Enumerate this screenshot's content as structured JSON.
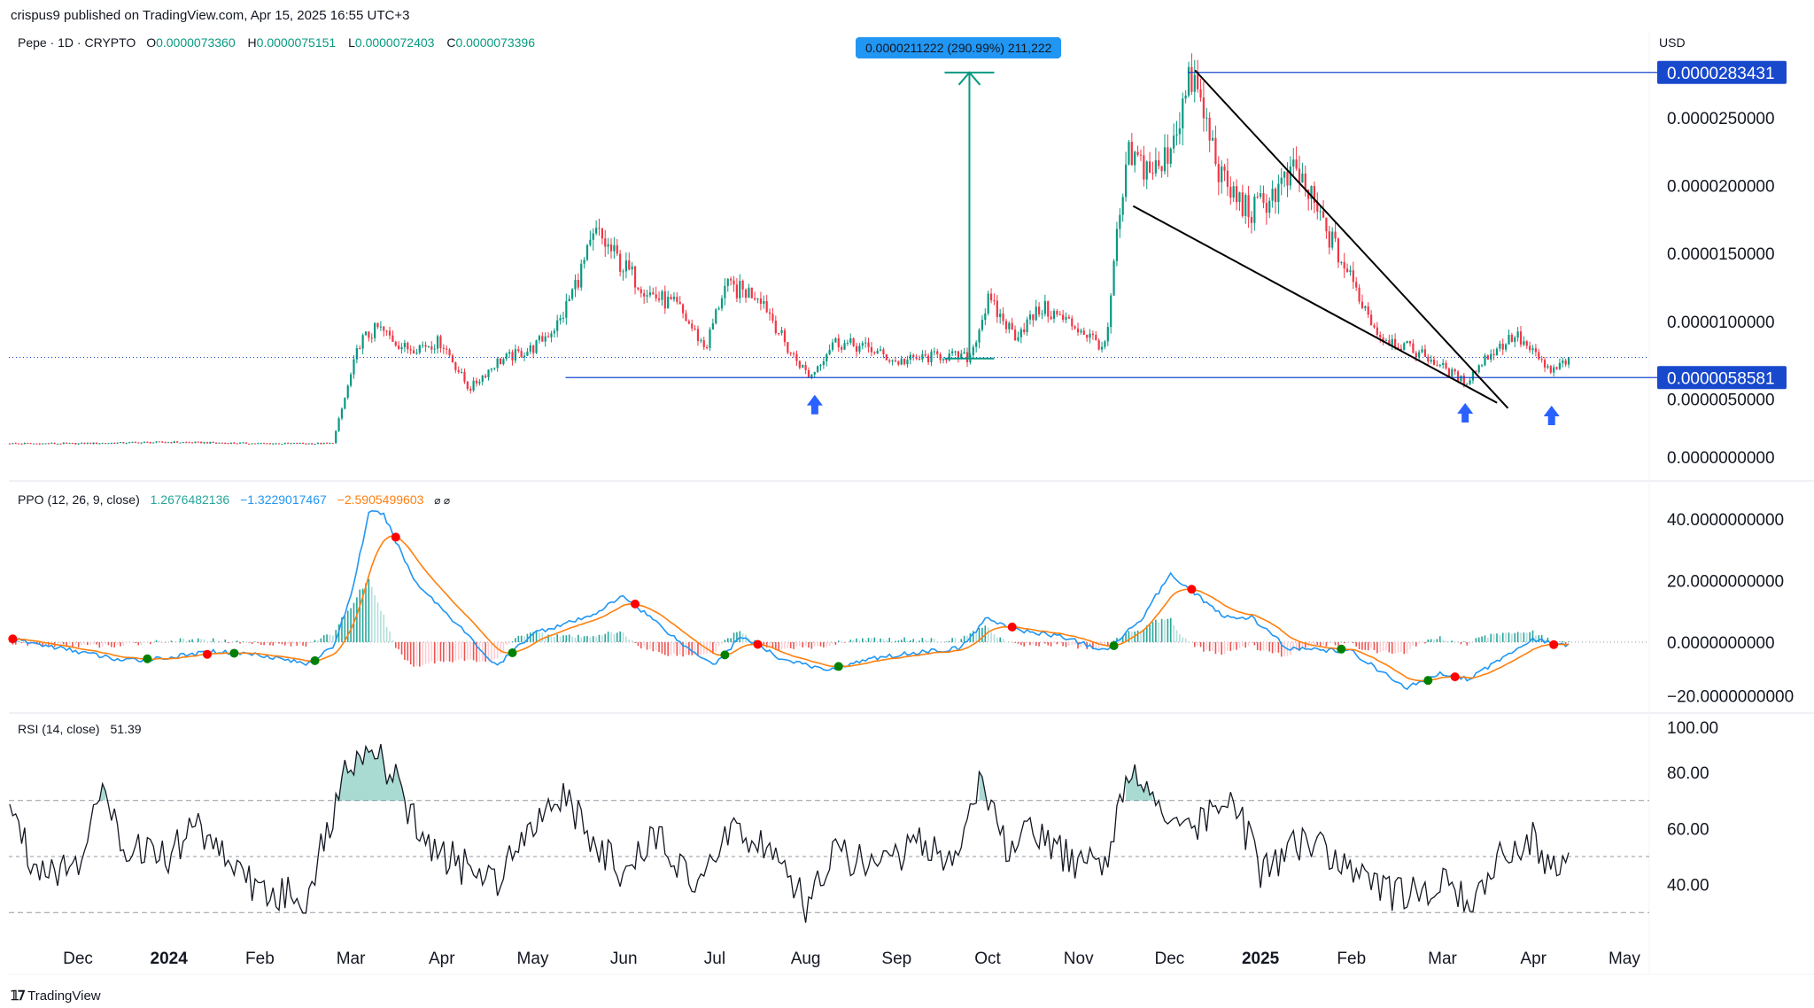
{
  "header": {
    "published": "crispus9 published on TradingView.com, Apr 15, 2025 16:55 UTC+3"
  },
  "symbol": {
    "name": "Pepe · 1D · CRYPTO",
    "o_label": "O",
    "o": "0.0000073360",
    "h_label": "H",
    "h": "0.0000075151",
    "l_label": "L",
    "l": "0.0000072403",
    "c_label": "C",
    "c": "0.0000073396"
  },
  "price_axis": {
    "currency": "USD",
    "ticks": [
      "0.0000250000",
      "0.0000200000",
      "0.0000150000",
      "0.0000100000",
      "0.0000050000",
      "0.0000000000"
    ],
    "resistance_label": "0.0000283431",
    "support_label": "0.0000058581"
  },
  "measure": {
    "label": "0.0000211222 (290.99%) 211,222"
  },
  "ppo": {
    "title": "PPO (12, 26, 9, close)",
    "hist": "1.2676482136",
    "ppo": "−1.3229017467",
    "signal": "−2.5905499603",
    "ticks": [
      "40.0000000000",
      "20.0000000000",
      "0.0000000000",
      "−20.0000000000"
    ]
  },
  "rsi": {
    "title": "RSI (14, close)",
    "value": "51.39",
    "ticks": [
      "100.00",
      "80.00",
      "60.00",
      "40.00"
    ]
  },
  "time_axis": {
    "labels": [
      "Dec",
      "2024",
      "Feb",
      "Mar",
      "Apr",
      "May",
      "Jun",
      "Jul",
      "Aug",
      "Sep",
      "Oct",
      "Nov",
      "Dec",
      "2025",
      "Feb",
      "Mar",
      "Apr",
      "May"
    ]
  },
  "footer": {
    "brand": "TradingView"
  },
  "colors": {
    "up": "#089981",
    "down": "#f23645",
    "ppo": "#2196f3",
    "signal": "#ff7f0e",
    "level": "#1848cc",
    "measure": "#2196f3"
  },
  "chart_data": {
    "type": "candlestick",
    "price_unit": "1e-6 USD",
    "price_key_points": [
      [
        -0.75,
        1.0
      ],
      [
        0,
        1.0
      ],
      [
        1,
        1.1
      ],
      [
        2,
        1.0
      ],
      [
        2.8,
        1.0
      ],
      [
        3.1,
        8.5
      ],
      [
        3.3,
        9.5
      ],
      [
        3.6,
        8
      ],
      [
        4,
        8.5
      ],
      [
        4.3,
        5.0
      ],
      [
        4.6,
        7
      ],
      [
        5,
        8
      ],
      [
        5.3,
        10
      ],
      [
        5.7,
        16.5
      ],
      [
        6,
        14
      ],
      [
        6.3,
        12
      ],
      [
        6.6,
        11
      ],
      [
        6.9,
        8
      ],
      [
        7.1,
        12.5
      ],
      [
        7.5,
        12
      ],
      [
        7.8,
        8
      ],
      [
        8.05,
        5.9
      ],
      [
        8.3,
        8.5
      ],
      [
        8.7,
        8
      ],
      [
        9,
        7
      ],
      [
        9.5,
        7.5
      ],
      [
        9.8,
        7.3
      ],
      [
        10.0,
        11.5
      ],
      [
        10.3,
        9
      ],
      [
        10.6,
        11
      ],
      [
        11,
        9.5
      ],
      [
        11.3,
        8
      ],
      [
        11.42,
        16
      ],
      [
        11.55,
        22
      ],
      [
        11.9,
        21
      ],
      [
        12.25,
        28
      ],
      [
        12.6,
        20
      ],
      [
        12.9,
        18
      ],
      [
        13.4,
        21
      ],
      [
        13.7,
        17
      ],
      [
        14,
        13
      ],
      [
        14.3,
        9
      ],
      [
        14.8,
        7.5
      ],
      [
        15.25,
        5.5
      ],
      [
        15.5,
        7.5
      ],
      [
        15.8,
        9
      ],
      [
        16.2,
        6.2
      ],
      [
        16.4,
        7.34
      ]
    ],
    "resistance": 28.3431,
    "support": 5.8581,
    "last": 7.3396,
    "ppo_key_points": [
      [
        -0.75,
        1
      ],
      [
        0,
        -3
      ],
      [
        0.5,
        -6
      ],
      [
        1,
        -5
      ],
      [
        1.5,
        -3
      ],
      [
        2,
        -4
      ],
      [
        2.5,
        -7
      ],
      [
        2.8,
        -2
      ],
      [
        3.0,
        15
      ],
      [
        3.2,
        42
      ],
      [
        3.35,
        42
      ],
      [
        3.7,
        20
      ],
      [
        4.2,
        5
      ],
      [
        4.6,
        -8
      ],
      [
        5,
        3
      ],
      [
        5.6,
        8
      ],
      [
        6,
        15
      ],
      [
        6.3,
        8
      ],
      [
        6.7,
        -2
      ],
      [
        7,
        -7
      ],
      [
        7.3,
        2
      ],
      [
        7.7,
        -5
      ],
      [
        8.2,
        -9
      ],
      [
        8.8,
        -5
      ],
      [
        9.3,
        -3
      ],
      [
        9.7,
        -2
      ],
      [
        10,
        8
      ],
      [
        10.3,
        4
      ],
      [
        10.8,
        2
      ],
      [
        11.1,
        -1
      ],
      [
        11.3,
        -3
      ],
      [
        11.7,
        8
      ],
      [
        12.0,
        22
      ],
      [
        12.2,
        18
      ],
      [
        12.6,
        8
      ],
      [
        12.9,
        8
      ],
      [
        13.3,
        -2
      ],
      [
        14,
        -3
      ],
      [
        14.6,
        -15
      ],
      [
        15,
        -10
      ],
      [
        15.3,
        -12
      ],
      [
        15.6,
        -6
      ],
      [
        16,
        1
      ],
      [
        16.4,
        -1.3
      ]
    ],
    "rsi_key_points": [
      [
        -0.75,
        70
      ],
      [
        -0.5,
        48
      ],
      [
        0,
        45
      ],
      [
        0.2,
        75
      ],
      [
        0.5,
        55
      ],
      [
        1,
        50
      ],
      [
        1.3,
        62
      ],
      [
        2,
        37
      ],
      [
        2.5,
        35
      ],
      [
        3.0,
        85
      ],
      [
        3.2,
        90
      ],
      [
        3.5,
        76
      ],
      [
        3.8,
        55
      ],
      [
        4.3,
        45
      ],
      [
        4.6,
        42
      ],
      [
        4.9,
        60
      ],
      [
        5.3,
        72
      ],
      [
        5.7,
        55
      ],
      [
        6,
        42
      ],
      [
        6.4,
        60
      ],
      [
        6.8,
        35
      ],
      [
        7.2,
        62
      ],
      [
        7.6,
        52
      ],
      [
        8,
        33
      ],
      [
        8.3,
        50
      ],
      [
        8.8,
        48
      ],
      [
        9.3,
        55
      ],
      [
        9.6,
        48
      ],
      [
        9.9,
        75
      ],
      [
        10.2,
        55
      ],
      [
        10.6,
        58
      ],
      [
        11,
        45
      ],
      [
        11.3,
        48
      ],
      [
        11.6,
        85
      ],
      [
        11.9,
        65
      ],
      [
        12.3,
        60
      ],
      [
        12.7,
        70
      ],
      [
        13,
        45
      ],
      [
        13.5,
        55
      ],
      [
        14,
        45
      ],
      [
        14.5,
        36
      ],
      [
        15,
        40
      ],
      [
        15.3,
        32
      ],
      [
        15.7,
        52
      ],
      [
        16,
        58
      ],
      [
        16.2,
        45
      ],
      [
        16.4,
        51.39
      ]
    ],
    "rsi_levels": [
      70,
      50,
      30
    ]
  }
}
